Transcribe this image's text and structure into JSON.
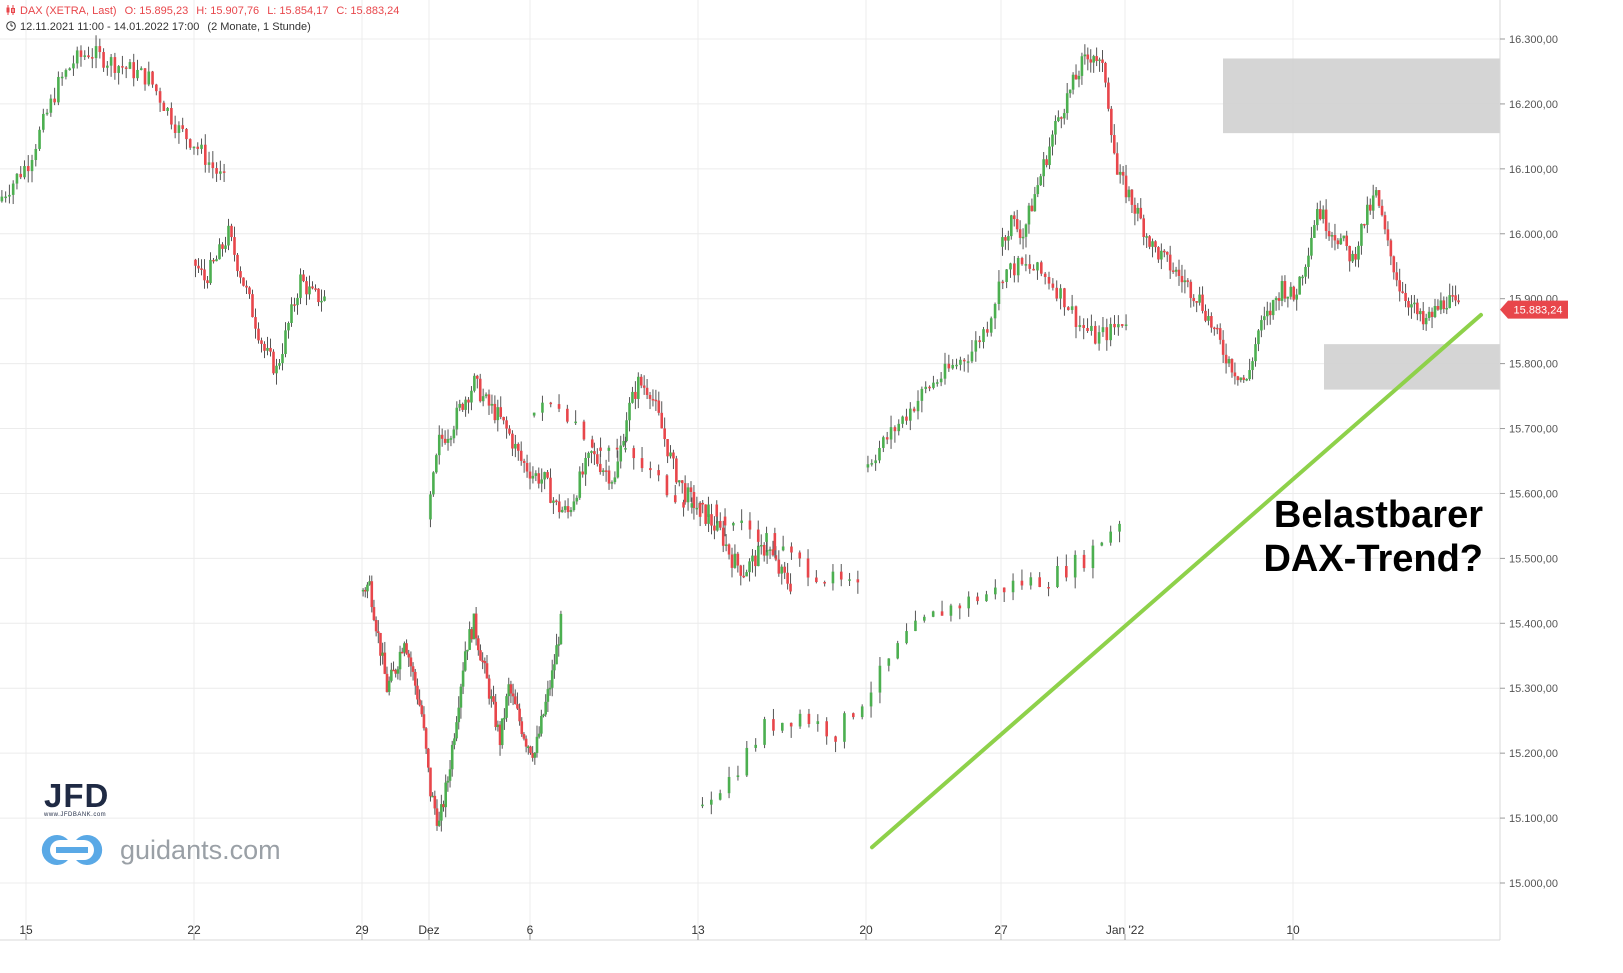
{
  "header": {
    "instrument": "DAX (XETRA, Last)",
    "open": "O: 15.895,23",
    "high": "H: 15.907,76",
    "low": "L: 15.854,17",
    "close": "C: 15.883,24",
    "range": "12.11.2021 11:00 - 14.01.2022 17:00",
    "period": "(2 Monate, 1 Stunde)",
    "chart_icon": "candlestick-icon",
    "clock_icon": "clock-icon"
  },
  "annotation": {
    "line1": "Belastbarer",
    "line2": "DAX-Trend?"
  },
  "logos": {
    "jfd": "JFD",
    "jfd_url": "www.JFDBANK.com",
    "guidants": "guidants.com"
  },
  "colors": {
    "up": "#4caf50",
    "down": "#e8464b",
    "trendline": "#8ed14a",
    "zone": "#d3d3d3",
    "price_tag": "#e8464b",
    "grid": "#ececec"
  },
  "chart_data": {
    "type": "candlestick",
    "ylim": [
      14950,
      16330
    ],
    "y_ticks": [
      {
        "value": 15000,
        "label": "15.000,00"
      },
      {
        "value": 15100,
        "label": "15.100,00"
      },
      {
        "value": 15200,
        "label": "15.200,00"
      },
      {
        "value": 15300,
        "label": "15.300,00"
      },
      {
        "value": 15400,
        "label": "15.400,00"
      },
      {
        "value": 15500,
        "label": "15.500,00"
      },
      {
        "value": 15600,
        "label": "15.600,00"
      },
      {
        "value": 15700,
        "label": "15.700,00"
      },
      {
        "value": 15800,
        "label": "15.800,00"
      },
      {
        "value": 15900,
        "label": "15.900,00"
      },
      {
        "value": 16000,
        "label": "16.000,00"
      },
      {
        "value": 16100,
        "label": "16.100,00"
      },
      {
        "value": 16200,
        "label": "16.200,00"
      },
      {
        "value": 16300,
        "label": "16.300,00"
      }
    ],
    "x_ticks": [
      "15",
      "22",
      "29",
      "Dez",
      "6",
      "13",
      "20",
      "27",
      "Jan '22",
      "10"
    ],
    "last_price": {
      "value": 15883.24,
      "label": "15.883,24"
    },
    "zones": [
      {
        "from": 15760,
        "to": 15830
      },
      {
        "from": 16155,
        "to": 16270
      }
    ],
    "trendline": {
      "from": {
        "date": "2021-12-20",
        "value": 15055
      },
      "to": {
        "date": "2022-01-14",
        "value": 15875
      }
    },
    "segments": [
      {
        "label": "15",
        "start": 16050,
        "points": [
          16080,
          16110,
          16170,
          16230,
          16265,
          16280,
          16270,
          16260,
          16250,
          16240,
          16200,
          16160,
          16140,
          16110,
          16080
        ]
      },
      {
        "label": "22",
        "start": 15960,
        "points": [
          15930,
          15960,
          16000,
          15940,
          15880,
          15820,
          15790,
          15860,
          15930,
          15905,
          15900
        ]
      },
      {
        "label": "29",
        "start": 15450,
        "points": [
          15460,
          15380,
          15300,
          15330,
          15380,
          15320,
          15260,
          15140,
          15090,
          15160,
          15260,
          15360,
          15400,
          15340,
          15280,
          15220,
          15300,
          15260,
          15220,
          15200,
          15260,
          15320,
          15400
        ]
      },
      {
        "label": "6",
        "start": 15560,
        "points": [
          15680,
          15700,
          15740,
          15770,
          15740,
          15720,
          15690,
          15650,
          15630,
          15620,
          15580,
          15570,
          15620,
          15660,
          15640,
          15620,
          15720,
          15770,
          15760,
          15700,
          15640,
          15600,
          15580,
          15560,
          15540,
          15500,
          15480,
          15500,
          15520,
          15480,
          15460
        ]
      },
      {
        "label": "13",
        "start": 15720,
        "points": [
          15740,
          15680,
          15660,
          15620,
          15580,
          15560,
          15540,
          15500,
          15470,
          15450
        ]
      },
      {
        "label": "20",
        "start": 15120,
        "points": [
          15160,
          15240,
          15260,
          15230,
          15300,
          15380,
          15420,
          15440,
          15460,
          15470,
          15500,
          15560
        ]
      },
      {
        "label": "27",
        "start": 15640,
        "points": [
          15670,
          15700,
          15730,
          15760,
          15780,
          15800,
          15820,
          15860,
          15940,
          15950,
          15945,
          15930,
          15900,
          15860,
          15840,
          15850,
          15870
        ]
      },
      {
        "label": "Jan '22",
        "start": 15980,
        "points": [
          16020,
          16000,
          16060,
          16120,
          16180,
          16220,
          16260,
          16280,
          16240,
          16090,
          16060,
          16020,
          15980,
          15960,
          15940,
          15920,
          15900,
          15860,
          15820,
          15790,
          15770,
          15850,
          15880,
          15920,
          15900,
          15960,
          16040,
          16010,
          15990,
          15960,
          16020,
          16060,
          15980,
          15920,
          15890,
          15860,
          15880,
          15900,
          15883
        ]
      }
    ]
  }
}
